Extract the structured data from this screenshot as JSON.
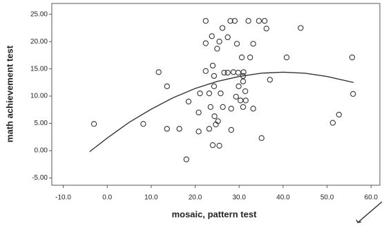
{
  "chart_data": {
    "type": "scatter",
    "x_label": "mosaic, pattern test",
    "y_label": "math achievement test",
    "x": [
      -3,
      8.2,
      13.6,
      16.4,
      13.6,
      11.7,
      18,
      18.5,
      20.8,
      20.8,
      21.1,
      22.4,
      22.4,
      22.4,
      23.2,
      23.5,
      23.2,
      23.8,
      24,
      24.3,
      24.3,
      24,
      24.4,
      24.7,
      25,
      25.5,
      26.2,
      25.5,
      25.2,
      26.3,
      25.8,
      26.6,
      27.4,
      28,
      27.4,
      28.2,
      28.2,
      28.7,
      29,
      29.3,
      29.5,
      29.9,
      29.8,
      30.3,
      30.6,
      30.9,
      30.9,
      31,
      30.9,
      31.4,
      31.5,
      32.1,
      32.5,
      33.2,
      33.2,
      34.5,
      35.8,
      36.2,
      35.1,
      37,
      40.8,
      44,
      51.3,
      52.7,
      55.7,
      55.9
    ],
    "y": [
      4.9,
      4.9,
      4,
      4,
      11.8,
      14.4,
      -1.6,
      9,
      3.5,
      7,
      10.5,
      23.8,
      19.7,
      14.6,
      4,
      8,
      10.5,
      21,
      15.6,
      13.7,
      11.8,
      1,
      6.3,
      4.8,
      18.7,
      20,
      22.5,
      0.9,
      5.4,
      8,
      10.5,
      14.3,
      14.3,
      23.8,
      20.8,
      7.7,
      3.8,
      14.4,
      23.8,
      9.9,
      19.6,
      11.8,
      14.3,
      9.2,
      17.1,
      13.7,
      8,
      14.4,
      12.7,
      10.9,
      9.2,
      23.8,
      17.1,
      19.6,
      7.7,
      23.8,
      23.8,
      22.4,
      2.3,
      13,
      17.1,
      22.5,
      5.1,
      6.6,
      17.1,
      10.4
    ],
    "color": "#333333",
    "fit": {
      "x": [
        -4,
        0,
        5,
        10,
        15,
        20,
        25,
        30,
        35,
        40,
        45,
        50,
        56
      ],
      "y": [
        -0.2,
        2.3,
        5.2,
        7.6,
        9.7,
        11.4,
        12.7,
        13.6,
        14.2,
        14.4,
        14.2,
        13.6,
        12.5
      ],
      "color": "#333333"
    },
    "xlim": [
      -12.6,
      62
    ],
    "ylim": [
      -6.35,
      27
    ],
    "xticks": [
      {
        "value": -10,
        "label": "-10.0"
      },
      {
        "value": 0,
        "label": "0.0"
      },
      {
        "value": 10,
        "label": "10.0"
      },
      {
        "value": 20,
        "label": "20.0"
      },
      {
        "value": 30,
        "label": "30.0"
      },
      {
        "value": 40,
        "label": "40.0"
      },
      {
        "value": 50,
        "label": "50.0"
      },
      {
        "value": 60,
        "label": "60.0"
      }
    ],
    "yticks": [
      {
        "value": -5,
        "label": "-5.00"
      },
      {
        "value": 0,
        "label": "0.00"
      },
      {
        "value": 5,
        "label": "5.00"
      },
      {
        "value": 10,
        "label": "10.00"
      },
      {
        "value": 15,
        "label": "15.00"
      },
      {
        "value": 20,
        "label": "20.00"
      },
      {
        "value": 25,
        "label": "25.00"
      }
    ]
  }
}
